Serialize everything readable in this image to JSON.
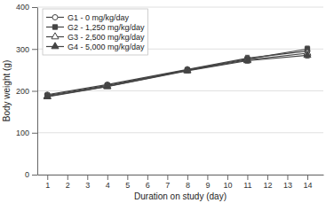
{
  "chart_data": {
    "type": "line",
    "x": [
      1,
      4,
      8,
      11,
      14
    ],
    "series": [
      {
        "name": "G1 - 0 mg/kg/day",
        "color": "#444444",
        "marker": "circle-open",
        "line_style": "solid",
        "values": [
          191,
          215,
          251,
          278,
          295
        ],
        "yerr": [
          3,
          4,
          5,
          7,
          8
        ]
      },
      {
        "name": "G2 - 1,250 mg/kg/day",
        "color": "#444444",
        "marker": "square",
        "line_style": "solid",
        "values": [
          189,
          213,
          250,
          276,
          300
        ],
        "yerr": [
          3,
          5,
          5,
          6,
          7
        ]
      },
      {
        "name": "G3 - 2,500 mg/kg/day",
        "color": "#444444",
        "marker": "triangle-open",
        "line_style": "solid",
        "values": [
          187,
          211,
          249,
          274,
          290
        ],
        "yerr": [
          3,
          4,
          5,
          6,
          7
        ]
      },
      {
        "name": "G4 - 5,000 mg/kg/day",
        "color": "#444444",
        "marker": "triangle",
        "line_style": "solid",
        "values": [
          186,
          210,
          248,
          272,
          285
        ],
        "yerr": [
          3,
          4,
          5,
          6,
          7
        ]
      }
    ],
    "xlabel": "Duration on study (day)",
    "ylabel": "Body weight (g)",
    "xlim": [
      0.5,
      14.8
    ],
    "ylim": [
      0,
      400
    ],
    "xticks": [
      1,
      2,
      3,
      4,
      5,
      6,
      7,
      8,
      9,
      10,
      11,
      12,
      13,
      14
    ],
    "yticks": [
      0,
      100,
      200,
      300,
      400
    ],
    "grid": true,
    "legend": "upper left"
  }
}
